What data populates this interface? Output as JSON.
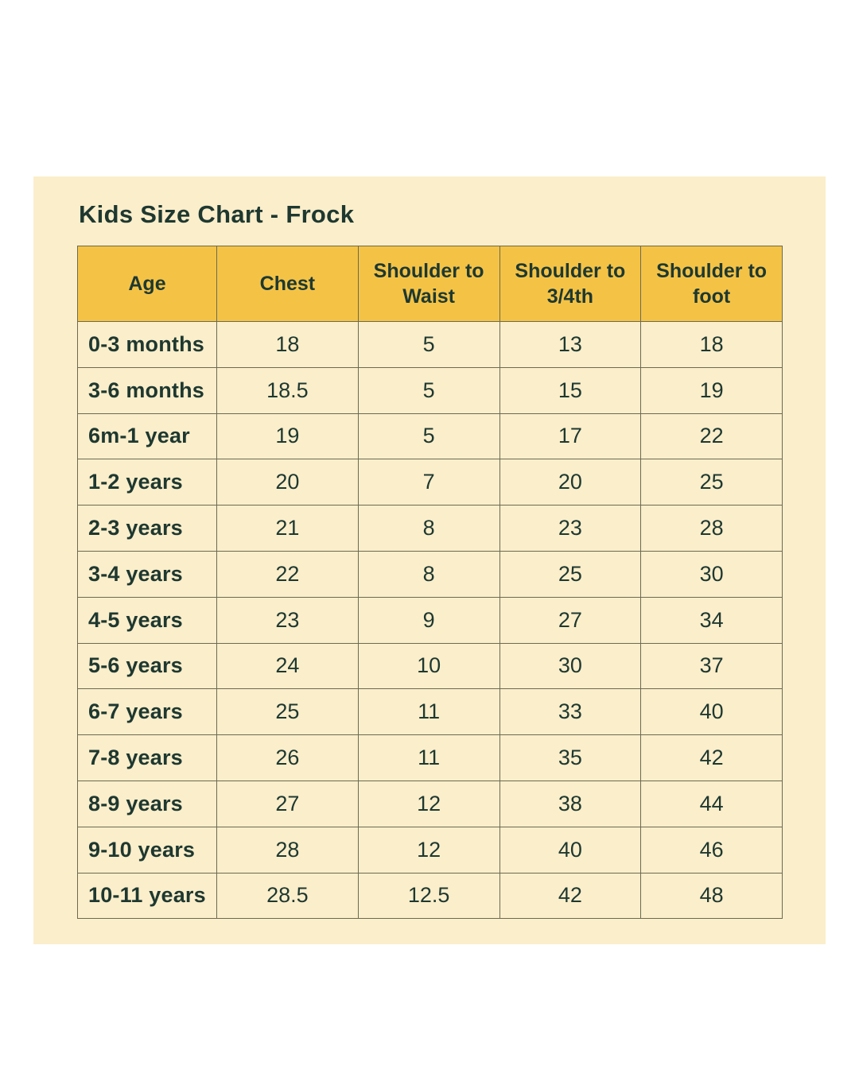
{
  "title": "Kids Size Chart - Frock",
  "colors": {
    "page_bg": "#FFFFFF",
    "card_bg": "#FBEECB",
    "header_bg": "#F4C346",
    "border": "#6B6A52",
    "text": "#1E3830"
  },
  "chart_data": {
    "type": "table",
    "title": "Kids Size Chart - Frock",
    "columns": [
      "Age",
      "Chest",
      "Shoulder to Waist",
      "Shoulder to 3/4th",
      "Shoulder to foot"
    ],
    "rows": [
      [
        "0-3 months",
        "18",
        "5",
        "13",
        "18"
      ],
      [
        "3-6 months",
        "18.5",
        "5",
        "15",
        "19"
      ],
      [
        "6m-1 year",
        "19",
        "5",
        "17",
        "22"
      ],
      [
        "1-2 years",
        "20",
        "7",
        "20",
        "25"
      ],
      [
        "2-3 years",
        "21",
        "8",
        "23",
        "28"
      ],
      [
        "3-4 years",
        "22",
        "8",
        "25",
        "30"
      ],
      [
        "4-5 years",
        "23",
        "9",
        "27",
        "34"
      ],
      [
        "5-6 years",
        "24",
        "10",
        "30",
        "37"
      ],
      [
        "6-7 years",
        "25",
        "11",
        "33",
        "40"
      ],
      [
        "7-8 years",
        "26",
        "11",
        "35",
        "42"
      ],
      [
        "8-9 years",
        "27",
        "12",
        "38",
        "44"
      ],
      [
        "9-10 years",
        "28",
        "12",
        "40",
        "46"
      ],
      [
        "10-11 years",
        "28.5",
        "12.5",
        "42",
        "48"
      ]
    ]
  }
}
